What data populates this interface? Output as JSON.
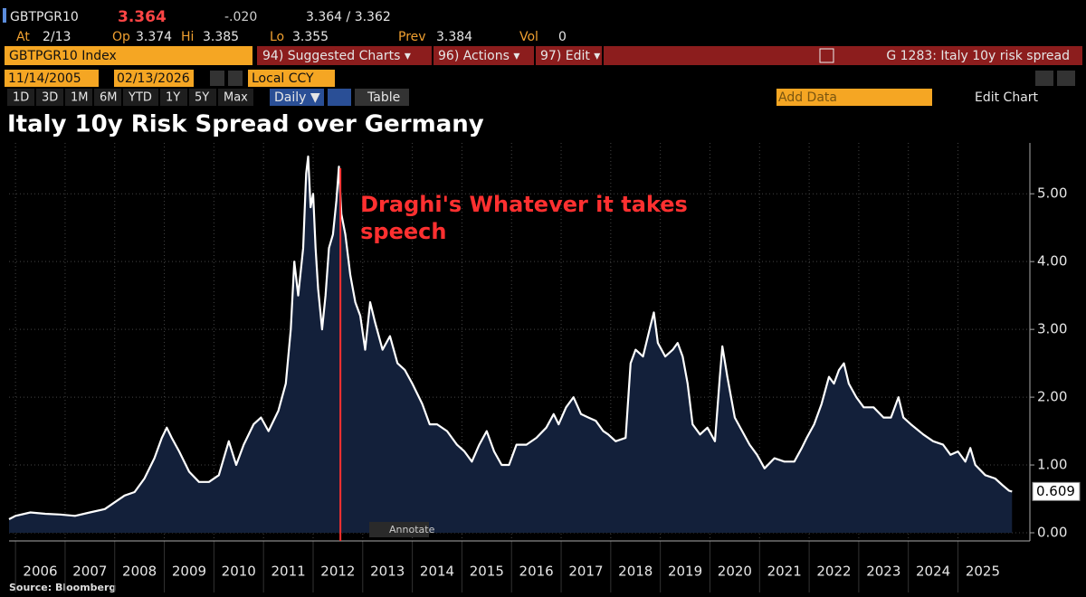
{
  "header": {
    "ticker": "GBTPGR10",
    "last": "3.364",
    "change": "-.020",
    "bid_ask": "3.364 / 3.362",
    "stats": [
      {
        "label": "At",
        "value": "2/13"
      },
      {
        "label": "Op",
        "value": "3.374"
      },
      {
        "label": "Hi",
        "value": "3.385"
      },
      {
        "label": "Lo",
        "value": "3.355"
      },
      {
        "label": "Prev",
        "value": "3.384"
      },
      {
        "label": "Vol",
        "value": "0"
      }
    ]
  },
  "toolbar": {
    "index": "GBTPGR10 Index",
    "menus": [
      "94) Suggested Charts ▾",
      "96) Actions ▾",
      "97) Edit ▾"
    ],
    "chart_ref": "G 1283: Italy 10y risk spread",
    "start_date": "11/14/2005",
    "end_date": "02/13/2026",
    "currency": "Local CCY",
    "ranges": [
      "1D",
      "3D",
      "1M",
      "6M",
      "YTD",
      "1Y",
      "5Y",
      "Max"
    ],
    "frequency": "Daily ▼",
    "view": "Table",
    "add_data": "Add Data",
    "edit_chart": "Edit Chart"
  },
  "chart_data": {
    "type": "area",
    "title": "Italy 10y Risk Spread over Germany",
    "source": "Source: Bloomberg",
    "annotate_button": "Annotate",
    "annotation": {
      "x": 2012.55,
      "lines": [
        "Draghi's Whatever it takes",
        "speech"
      ],
      "color": "#ff3030"
    },
    "xlim": [
      2005.87,
      2026.45
    ],
    "xticks": [
      {
        "value": 2006,
        "label": "2006"
      },
      {
        "value": 2007,
        "label": "2007"
      },
      {
        "value": 2008,
        "label": "2008"
      },
      {
        "value": 2009,
        "label": "2009"
      },
      {
        "value": 2010,
        "label": "2010"
      },
      {
        "value": 2011,
        "label": "2011"
      },
      {
        "value": 2012,
        "label": "2012"
      },
      {
        "value": 2013,
        "label": "2013"
      },
      {
        "value": 2014,
        "label": "2014"
      },
      {
        "value": 2015,
        "label": "2015"
      },
      {
        "value": 2016,
        "label": "2016"
      },
      {
        "value": 2017,
        "label": "2017"
      },
      {
        "value": 2018,
        "label": "2018"
      },
      {
        "value": 2019,
        "label": "2019"
      },
      {
        "value": 2020,
        "label": "2020"
      },
      {
        "value": 2021,
        "label": "2021"
      },
      {
        "value": 2022,
        "label": "2022"
      },
      {
        "value": 2023,
        "label": "2023"
      },
      {
        "value": 2024,
        "label": "2024"
      },
      {
        "value": 2025,
        "label": "2025"
      }
    ],
    "ylim": [
      -0.12,
      5.75
    ],
    "yticks": [
      {
        "value": 0,
        "label": "0.00"
      },
      {
        "value": 1,
        "label": "1.00"
      },
      {
        "value": 2,
        "label": "2.00"
      },
      {
        "value": 3,
        "label": "3.00"
      },
      {
        "value": 4,
        "label": "4.00"
      },
      {
        "value": 5,
        "label": "5.00"
      }
    ],
    "grid": true,
    "series": [
      {
        "name": "GBTPGR10",
        "color": "#ffffff",
        "fill": "#13203a",
        "x": [
          2005.87,
          2006.0,
          2006.3,
          2006.6,
          2006.9,
          2007.2,
          2007.5,
          2007.8,
          2008.0,
          2008.2,
          2008.4,
          2008.6,
          2008.8,
          2008.95,
          2009.05,
          2009.15,
          2009.3,
          2009.5,
          2009.7,
          2009.9,
          2010.1,
          2010.3,
          2010.45,
          2010.6,
          2010.8,
          2010.95,
          2011.1,
          2011.3,
          2011.45,
          2011.55,
          2011.62,
          2011.7,
          2011.8,
          2011.86,
          2011.9,
          2011.95,
          2012.0,
          2012.05,
          2012.1,
          2012.18,
          2012.25,
          2012.32,
          2012.4,
          2012.47,
          2012.52,
          2012.57,
          2012.65,
          2012.75,
          2012.85,
          2012.95,
          2013.05,
          2013.15,
          2013.25,
          2013.4,
          2013.55,
          2013.7,
          2013.85,
          2014.0,
          2014.2,
          2014.35,
          2014.5,
          2014.7,
          2014.9,
          2015.05,
          2015.2,
          2015.35,
          2015.5,
          2015.65,
          2015.8,
          2015.95,
          2016.1,
          2016.3,
          2016.5,
          2016.7,
          2016.85,
          2016.95,
          2017.1,
          2017.25,
          2017.4,
          2017.55,
          2017.7,
          2017.85,
          2017.95,
          2018.1,
          2018.3,
          2018.4,
          2018.5,
          2018.65,
          2018.8,
          2018.87,
          2018.95,
          2019.1,
          2019.25,
          2019.35,
          2019.45,
          2019.55,
          2019.65,
          2019.8,
          2019.95,
          2020.1,
          2020.2,
          2020.25,
          2020.35,
          2020.5,
          2020.65,
          2020.8,
          2020.95,
          2021.1,
          2021.3,
          2021.5,
          2021.7,
          2021.85,
          2021.95,
          2022.1,
          2022.25,
          2022.4,
          2022.5,
          2022.6,
          2022.7,
          2022.8,
          2022.95,
          2023.1,
          2023.3,
          2023.5,
          2023.65,
          2023.8,
          2023.9,
          2024.05,
          2024.3,
          2024.5,
          2024.7,
          2024.85,
          2025.0,
          2025.15,
          2025.25,
          2025.35,
          2025.55,
          2025.75,
          2025.9,
          2026.03,
          2026.09
        ],
        "values": [
          0.2,
          0.25,
          0.3,
          0.28,
          0.27,
          0.25,
          0.3,
          0.35,
          0.45,
          0.55,
          0.6,
          0.8,
          1.1,
          1.4,
          1.55,
          1.4,
          1.2,
          0.9,
          0.75,
          0.75,
          0.85,
          1.35,
          1.0,
          1.3,
          1.6,
          1.7,
          1.5,
          1.8,
          2.2,
          3.0,
          4.0,
          3.5,
          4.2,
          5.3,
          5.55,
          4.8,
          5.0,
          4.2,
          3.6,
          3.0,
          3.5,
          4.2,
          4.4,
          4.9,
          5.4,
          4.7,
          4.4,
          3.8,
          3.4,
          3.2,
          2.7,
          3.4,
          3.1,
          2.7,
          2.9,
          2.5,
          2.4,
          2.2,
          1.9,
          1.6,
          1.6,
          1.5,
          1.3,
          1.2,
          1.05,
          1.3,
          1.5,
          1.2,
          1.0,
          1.0,
          1.3,
          1.3,
          1.4,
          1.55,
          1.75,
          1.6,
          1.85,
          2.0,
          1.75,
          1.7,
          1.65,
          1.5,
          1.45,
          1.35,
          1.4,
          2.5,
          2.7,
          2.6,
          3.05,
          3.25,
          2.8,
          2.6,
          2.7,
          2.8,
          2.6,
          2.2,
          1.6,
          1.45,
          1.55,
          1.35,
          2.3,
          2.75,
          2.3,
          1.7,
          1.5,
          1.3,
          1.15,
          0.95,
          1.1,
          1.05,
          1.05,
          1.25,
          1.4,
          1.6,
          1.9,
          2.3,
          2.2,
          2.4,
          2.5,
          2.2,
          2.0,
          1.85,
          1.85,
          1.7,
          1.7,
          2.0,
          1.7,
          1.6,
          1.45,
          1.35,
          1.3,
          1.15,
          1.2,
          1.05,
          1.25,
          1.0,
          0.85,
          0.8,
          0.7,
          0.62,
          0.609
        ]
      }
    ]
  }
}
